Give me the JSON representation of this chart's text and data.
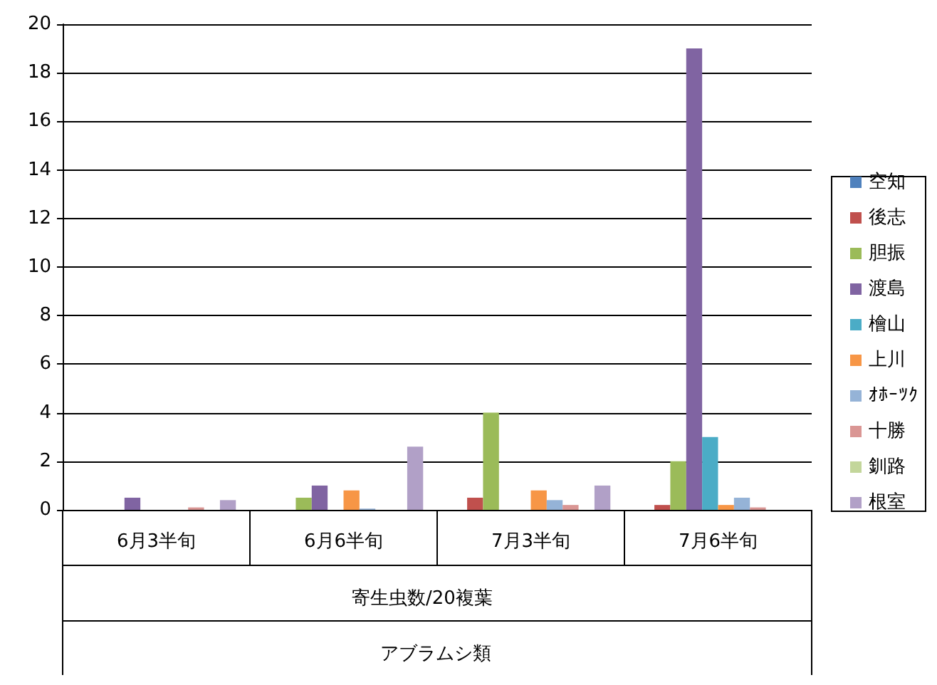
{
  "chart_data": {
    "type": "bar",
    "categories": [
      "6月3半旬",
      "6月6半旬",
      "7月3半旬",
      "7月6半旬"
    ],
    "xlabel": "寄生虫数/20複葉",
    "annotations": [
      "アブラムシ類"
    ],
    "ylim": [
      0,
      20
    ],
    "yticks": [
      0,
      2,
      4,
      6,
      8,
      10,
      12,
      14,
      16,
      18,
      20
    ],
    "grid": "y",
    "legend": "right",
    "series": [
      {
        "name": "空知",
        "color": "#4f81bd",
        "values": [
          0,
          0,
          0,
          0
        ]
      },
      {
        "name": "後志",
        "color": "#c0504d",
        "values": [
          0,
          0,
          0.5,
          0.2
        ]
      },
      {
        "name": "胆振",
        "color": "#9bbb59",
        "values": [
          0,
          0.5,
          4.0,
          2.0
        ]
      },
      {
        "name": "渡島",
        "color": "#8064a2",
        "values": [
          0.5,
          1.0,
          0,
          19.0
        ]
      },
      {
        "name": "檜山",
        "color": "#4bacc6",
        "values": [
          0,
          0,
          0,
          3.0
        ]
      },
      {
        "name": "上川",
        "color": "#f79646",
        "values": [
          0,
          0.8,
          0.8,
          0.2
        ]
      },
      {
        "name": "ｵﾎｰﾂｸ",
        "color": "#95b3d7",
        "values": [
          0,
          0.05,
          0.4,
          0.5
        ]
      },
      {
        "name": "十勝",
        "color": "#da9694",
        "values": [
          0.1,
          0,
          0.2,
          0.1
        ]
      },
      {
        "name": "釧路",
        "color": "#c3d69b",
        "values": [
          0,
          0,
          0,
          0
        ]
      },
      {
        "name": "根室",
        "color": "#b1a0c7",
        "values": [
          0.4,
          2.6,
          1.0,
          0
        ]
      }
    ]
  }
}
